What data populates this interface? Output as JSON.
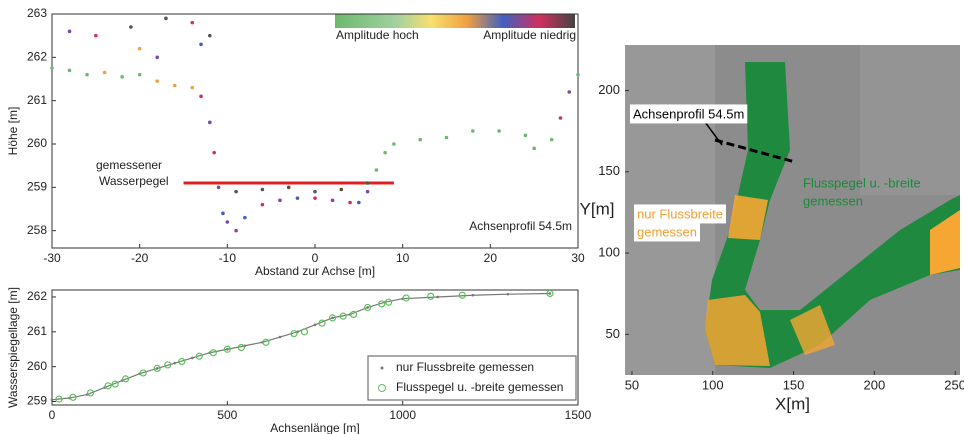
{
  "chart_data": [
    {
      "type": "scatter",
      "xlabel": "Abstand zur Achse [m]",
      "ylabel": "Höhe [m]",
      "xlim": [
        -30,
        30
      ],
      "ylim": [
        257.6,
        263
      ],
      "xticks": [
        -30,
        -20,
        -10,
        0,
        10,
        20,
        30
      ],
      "yticks": [
        258,
        259,
        260,
        261,
        262,
        263
      ],
      "colorbar_labels": [
        "Amplitude hoch",
        "Amplitude niedrig"
      ],
      "annotation": "Achsenprofil 54.5m",
      "water_level": {
        "label": [
          "gemessener",
          "Wasserpegel"
        ],
        "y": 259.1,
        "x": [
          -15,
          9
        ],
        "color": "#e02020"
      },
      "series": [
        {
          "x": [
            -30,
            -28,
            -26,
            -24,
            -22,
            -20,
            -18,
            -16,
            -14,
            -13,
            -12,
            -11.5,
            -11,
            -10.5,
            -10,
            -9,
            -8,
            -6,
            -4,
            -2,
            0,
            2,
            4,
            5,
            6,
            -9,
            -6,
            -3,
            0,
            3,
            6,
            7,
            8,
            9,
            12,
            15,
            18,
            21,
            24,
            25,
            27,
            28,
            29,
            30,
            -28,
            -25,
            -21,
            -20,
            -18,
            -17,
            -14,
            -13,
            -12
          ],
          "values": [
            261.75,
            261.7,
            261.6,
            261.65,
            261.55,
            261.6,
            261.45,
            261.35,
            261.3,
            261.1,
            260.5,
            259.8,
            259.0,
            258.4,
            258.2,
            258.0,
            258.3,
            258.6,
            258.7,
            258.75,
            258.75,
            258.7,
            258.65,
            258.65,
            258.9,
            258.9,
            258.95,
            259.0,
            258.9,
            258.95,
            259.1,
            259.4,
            259.8,
            260.0,
            260.1,
            260.15,
            260.3,
            260.3,
            260.2,
            259.9,
            260.1,
            260.6,
            261.2,
            261.6,
            262.6,
            262.5,
            262.7,
            262.2,
            262.0,
            262.9,
            262.8,
            262.3,
            262.5
          ],
          "colors": [
            "#6db86d",
            "#6db86d",
            "#6db86d",
            "#f0a040",
            "#6db86d",
            "#6db86d",
            "#f0a040",
            "#f0a040",
            "#f0a040",
            "#d03060",
            "#7a4aa0",
            "#d03060",
            "#7a4aa0",
            "#4060c0",
            "#7a4aa0",
            "#7a4aa0",
            "#4060c0",
            "#d03060",
            "#7a4aa0",
            "#4060c0",
            "#d03060",
            "#7a4aa0",
            "#d03060",
            "#4060c0",
            "#7a4aa0",
            "#555555",
            "#555555",
            "#6a4a30",
            "#555555",
            "#6a4a30",
            "#555555",
            "#6db86d",
            "#6db86d",
            "#6db86d",
            "#6db86d",
            "#6db86d",
            "#6db86d",
            "#6db86d",
            "#6db86d",
            "#6db86d",
            "#6db86d",
            "#d03060",
            "#7a4aa0",
            "#6db86d",
            "#7a4aa0",
            "#d03060",
            "#555555",
            "#f0a040",
            "#7a4aa0",
            "#555555",
            "#d03060",
            "#4060c0",
            "#555555"
          ]
        }
      ]
    },
    {
      "type": "line",
      "xlabel": "Achsenlänge [m]",
      "ylabel": "Wasserspiegellage [m]",
      "xlim": [
        0,
        1500
      ],
      "ylim": [
        258.9,
        262.2
      ],
      "xticks": [
        0,
        500,
        1000,
        1500
      ],
      "yticks": [
        259,
        260,
        261,
        262
      ],
      "legend": "lower right",
      "series": [
        {
          "name": "nur Flussbreite gemessen",
          "color": "#777777",
          "marker": "dot",
          "x": [
            0,
            50,
            100,
            150,
            200,
            250,
            300,
            350,
            400,
            450,
            500,
            550,
            600,
            650,
            700,
            750,
            800,
            850,
            900,
            950,
            1000,
            1100,
            1200,
            1300,
            1420
          ],
          "values": [
            259.05,
            259.1,
            259.2,
            259.4,
            259.6,
            259.8,
            259.95,
            260.1,
            260.25,
            260.4,
            260.5,
            260.6,
            260.7,
            260.85,
            261.0,
            261.2,
            261.4,
            261.5,
            261.7,
            261.85,
            261.95,
            262.0,
            262.05,
            262.08,
            262.1
          ]
        },
        {
          "name": "Flusspegel u. -breite gemessen",
          "color": "#5cc05c",
          "marker": "circle",
          "x": [
            20,
            60,
            110,
            160,
            180,
            210,
            260,
            300,
            330,
            370,
            420,
            460,
            500,
            540,
            610,
            690,
            720,
            770,
            800,
            830,
            860,
            900,
            940,
            960,
            1010,
            1080,
            1170,
            1420
          ],
          "values": [
            259.07,
            259.12,
            259.25,
            259.45,
            259.5,
            259.65,
            259.82,
            259.95,
            260.05,
            260.15,
            260.3,
            260.4,
            260.5,
            260.55,
            260.7,
            260.95,
            261.0,
            261.25,
            261.4,
            261.45,
            261.5,
            261.7,
            261.8,
            261.85,
            261.97,
            262.02,
            262.05,
            262.1
          ]
        }
      ]
    },
    {
      "type": "image",
      "xlabel": "X[m]",
      "ylabel": "Y[m]",
      "xlim": [
        45.7,
        253
      ],
      "ylim": [
        25,
        228
      ],
      "xticks": [
        50,
        100,
        150,
        200,
        250
      ],
      "yticks": [
        50,
        100,
        150,
        200
      ],
      "annotations": [
        {
          "text": [
            "Achsenprofil 54.5m"
          ],
          "color": "#000000"
        },
        {
          "text": [
            "Flusspegel u. -breite",
            "gemessen"
          ],
          "color": "#1a8a3a"
        },
        {
          "text": [
            "nur Flussbreite",
            "gemessen"
          ],
          "color": "#f0a030"
        }
      ]
    }
  ]
}
